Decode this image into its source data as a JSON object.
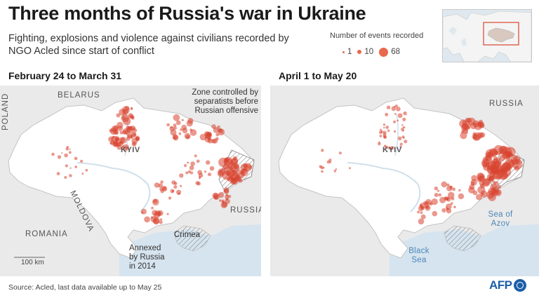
{
  "title": "Three months of Russia's war in Ukraine",
  "subtitle": "Fighting, explosions and violence against civilians recorded by NGO Acled since start of conflict",
  "legend": {
    "title": "Number of events recorded",
    "items": [
      {
        "label": "1",
        "size": 1
      },
      {
        "label": "10",
        "size": 10
      },
      {
        "label": "68",
        "size": 68
      }
    ],
    "color": "#e8694e"
  },
  "panels": [
    {
      "label": "February 24 to March 31",
      "countries": {
        "belarus": "BELARUS",
        "poland": "POLAND",
        "moldova": "MOLDOVA",
        "romania": "ROMANIA",
        "russia": "RUSSIA"
      },
      "city": "KYIV",
      "annotations": {
        "separatists": "Zone controlled by separatists before Russian offensive",
        "crimea": "Crimea",
        "annexed": "Annexed by Russia in 2014"
      },
      "scale": "100 km"
    },
    {
      "label": "April 1 to May 20",
      "countries": {
        "russia": "RUSSIA"
      },
      "city": "KYIV",
      "seas": {
        "azov": "Sea of Azov",
        "black": "Black Sea"
      }
    }
  ],
  "source": "Source: Acled, last data available up to May 25",
  "logo": "AFP",
  "colors": {
    "event": "#d8442f",
    "land": "#ffffff",
    "outside": "#eaeaea",
    "sea": "#d6e4ef",
    "sea_text": "#4a86b8",
    "logo": "#1c5ea8"
  }
}
